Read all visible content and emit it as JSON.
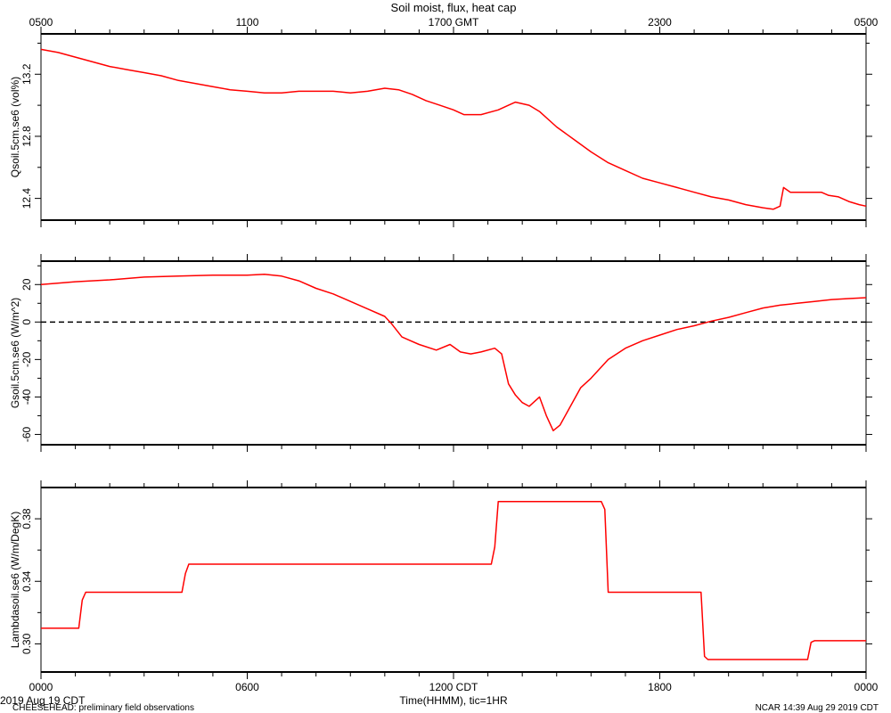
{
  "chart_data": {
    "type": "line",
    "title": "Soil moist, flux, heat cap",
    "top_axis": {
      "tick_labels": [
        "0500",
        "1100",
        "1700 GMT",
        "2300",
        "0500"
      ]
    },
    "x": {
      "label": "Time(HHMM), tic=1HR",
      "tick_labels": [
        "0000",
        "0600",
        "1200 CDT",
        "1800",
        "0000"
      ],
      "tick_hours": [
        0,
        6,
        12,
        18,
        24
      ],
      "range_hours": [
        0,
        24
      ],
      "unit": "hours CDT, 2019 Aug 19"
    },
    "panels": [
      {
        "ylabel": "Qsoil.5cm.se6 (vol%)",
        "ylim": [
          12.26,
          13.46
        ],
        "yticks": [
          12.4,
          12.8,
          13.2
        ],
        "ytick_labels": [
          "12.4",
          "12.8",
          "13.2"
        ],
        "series": [
          {
            "color": "#ff0000",
            "points": [
              [
                0,
                13.36
              ],
              [
                0.5,
                13.34
              ],
              [
                1.0,
                13.31
              ],
              [
                1.5,
                13.28
              ],
              [
                2.0,
                13.25
              ],
              [
                2.5,
                13.23
              ],
              [
                3.0,
                13.21
              ],
              [
                3.5,
                13.19
              ],
              [
                4.0,
                13.16
              ],
              [
                4.5,
                13.14
              ],
              [
                5.0,
                13.12
              ],
              [
                5.5,
                13.1
              ],
              [
                6.0,
                13.09
              ],
              [
                6.5,
                13.08
              ],
              [
                7.0,
                13.08
              ],
              [
                7.5,
                13.09
              ],
              [
                8.0,
                13.09
              ],
              [
                8.5,
                13.09
              ],
              [
                9.0,
                13.08
              ],
              [
                9.5,
                13.09
              ],
              [
                10.0,
                13.11
              ],
              [
                10.4,
                13.1
              ],
              [
                10.8,
                13.07
              ],
              [
                11.2,
                13.03
              ],
              [
                11.6,
                13.0
              ],
              [
                12.0,
                12.97
              ],
              [
                12.3,
                12.94
              ],
              [
                12.8,
                12.94
              ],
              [
                13.3,
                12.97
              ],
              [
                13.6,
                13.0
              ],
              [
                13.8,
                13.02
              ],
              [
                14.2,
                13.0
              ],
              [
                14.5,
                12.96
              ],
              [
                15.0,
                12.86
              ],
              [
                15.5,
                12.78
              ],
              [
                16.0,
                12.7
              ],
              [
                16.5,
                12.63
              ],
              [
                17.0,
                12.58
              ],
              [
                17.5,
                12.53
              ],
              [
                18.0,
                12.5
              ],
              [
                18.5,
                12.47
              ],
              [
                19.0,
                12.44
              ],
              [
                19.5,
                12.41
              ],
              [
                20.0,
                12.39
              ],
              [
                20.5,
                12.36
              ],
              [
                21.0,
                12.34
              ],
              [
                21.3,
                12.33
              ],
              [
                21.5,
                12.35
              ],
              [
                21.6,
                12.47
              ],
              [
                21.8,
                12.44
              ],
              [
                22.2,
                12.44
              ],
              [
                22.5,
                12.44
              ],
              [
                22.7,
                12.44
              ],
              [
                22.9,
                12.42
              ],
              [
                23.2,
                12.41
              ],
              [
                23.5,
                12.38
              ],
              [
                23.8,
                12.36
              ],
              [
                24.0,
                12.35
              ]
            ]
          }
        ]
      },
      {
        "ylabel": "Gsoil.5cm.se6 (W/m^2)",
        "ylim": [
          -65.5,
          32.5
        ],
        "yticks": [
          -60,
          -40,
          -20,
          0,
          20
        ],
        "ytick_labels": [
          "-60",
          "-40",
          "-20",
          "0",
          "20"
        ],
        "zero_line": true,
        "series": [
          {
            "color": "#ff0000",
            "points": [
              [
                0,
                20
              ],
              [
                1,
                21.5
              ],
              [
                2,
                22.5
              ],
              [
                3,
                24
              ],
              [
                4,
                24.5
              ],
              [
                5,
                25
              ],
              [
                6,
                25
              ],
              [
                6.5,
                25.5
              ],
              [
                7,
                24.5
              ],
              [
                7.5,
                22
              ],
              [
                8,
                18
              ],
              [
                8.5,
                15
              ],
              [
                9,
                11
              ],
              [
                9.5,
                7
              ],
              [
                10,
                3
              ],
              [
                10.2,
                -1
              ],
              [
                10.5,
                -8
              ],
              [
                11,
                -12
              ],
              [
                11.5,
                -15
              ],
              [
                11.9,
                -12
              ],
              [
                12.2,
                -16
              ],
              [
                12.5,
                -17
              ],
              [
                12.8,
                -16
              ],
              [
                13.2,
                -14
              ],
              [
                13.4,
                -17
              ],
              [
                13.6,
                -33
              ],
              [
                13.8,
                -39
              ],
              [
                14.0,
                -43
              ],
              [
                14.2,
                -45
              ],
              [
                14.5,
                -40
              ],
              [
                14.7,
                -50
              ],
              [
                14.9,
                -58
              ],
              [
                15.1,
                -55
              ],
              [
                15.4,
                -45
              ],
              [
                15.7,
                -35
              ],
              [
                16.0,
                -30
              ],
              [
                16.5,
                -20
              ],
              [
                17,
                -14
              ],
              [
                17.5,
                -10
              ],
              [
                18,
                -7
              ],
              [
                18.5,
                -4
              ],
              [
                19,
                -2
              ],
              [
                19.5,
                0.5
              ],
              [
                20,
                2.5
              ],
              [
                20.5,
                5
              ],
              [
                21,
                7.5
              ],
              [
                21.5,
                9
              ],
              [
                22,
                10
              ],
              [
                22.5,
                11
              ],
              [
                23,
                12
              ],
              [
                23.5,
                12.5
              ],
              [
                24,
                13
              ]
            ]
          }
        ]
      },
      {
        "ylabel": "Lambdasoil.se6 (W/m/DegK)",
        "ylim": [
          0.282,
          0.4
        ],
        "yticks": [
          0.3,
          0.34,
          0.38
        ],
        "ytick_labels": [
          "0.30",
          "0.34",
          "0.38"
        ],
        "series": [
          {
            "color": "#ff0000",
            "points": [
              [
                0,
                0.31
              ],
              [
                1.1,
                0.31
              ],
              [
                1.2,
                0.328
              ],
              [
                1.3,
                0.333
              ],
              [
                4.1,
                0.333
              ],
              [
                4.2,
                0.345
              ],
              [
                4.3,
                0.351
              ],
              [
                13.1,
                0.351
              ],
              [
                13.2,
                0.362
              ],
              [
                13.3,
                0.391
              ],
              [
                16.3,
                0.391
              ],
              [
                16.4,
                0.386
              ],
              [
                16.5,
                0.333
              ],
              [
                19.2,
                0.333
              ],
              [
                19.3,
                0.292
              ],
              [
                19.4,
                0.29
              ],
              [
                22.3,
                0.29
              ],
              [
                22.4,
                0.301
              ],
              [
                22.5,
                0.302
              ],
              [
                24,
                0.302
              ]
            ]
          }
        ]
      }
    ],
    "grid": false,
    "legend": "none"
  },
  "footer": {
    "date": "2019 Aug 19 CDT",
    "project": "CHEESEHEAD: preliminary field observations",
    "stamp": "NCAR 14:39 Aug 29 2019 CDT"
  }
}
